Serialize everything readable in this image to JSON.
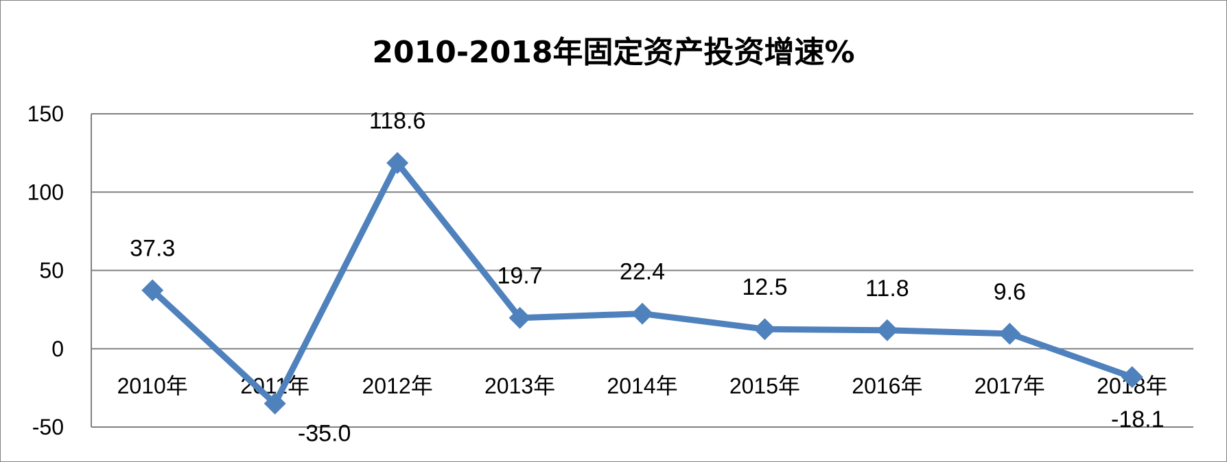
{
  "chart_data": {
    "type": "line",
    "title": "2010-2018年固定资产投资增速%",
    "xlabel": "",
    "ylabel": "",
    "categories": [
      "2010年",
      "2011年",
      "2012年",
      "2013年",
      "2014年",
      "2015年",
      "2016年",
      "2017年",
      "2018年"
    ],
    "series": [
      {
        "values": [
          37.3,
          -35.0,
          118.6,
          19.7,
          22.4,
          12.5,
          11.8,
          9.6,
          -18.1
        ],
        "labels": [
          "37.3",
          "-35.0",
          "118.6",
          "19.7",
          "22.4",
          "12.5",
          "11.8",
          "9.6",
          "-18.1"
        ]
      }
    ],
    "ylim": [
      -50,
      150
    ],
    "yticks": [
      -50,
      0,
      50,
      100,
      150
    ],
    "ytick_labels": [
      "-50",
      "0",
      "50",
      "100",
      "150"
    ],
    "grid": true,
    "legend": "none",
    "colors": {
      "series": "#4F81BD",
      "grid": "#808080",
      "axis": "#808080"
    }
  }
}
